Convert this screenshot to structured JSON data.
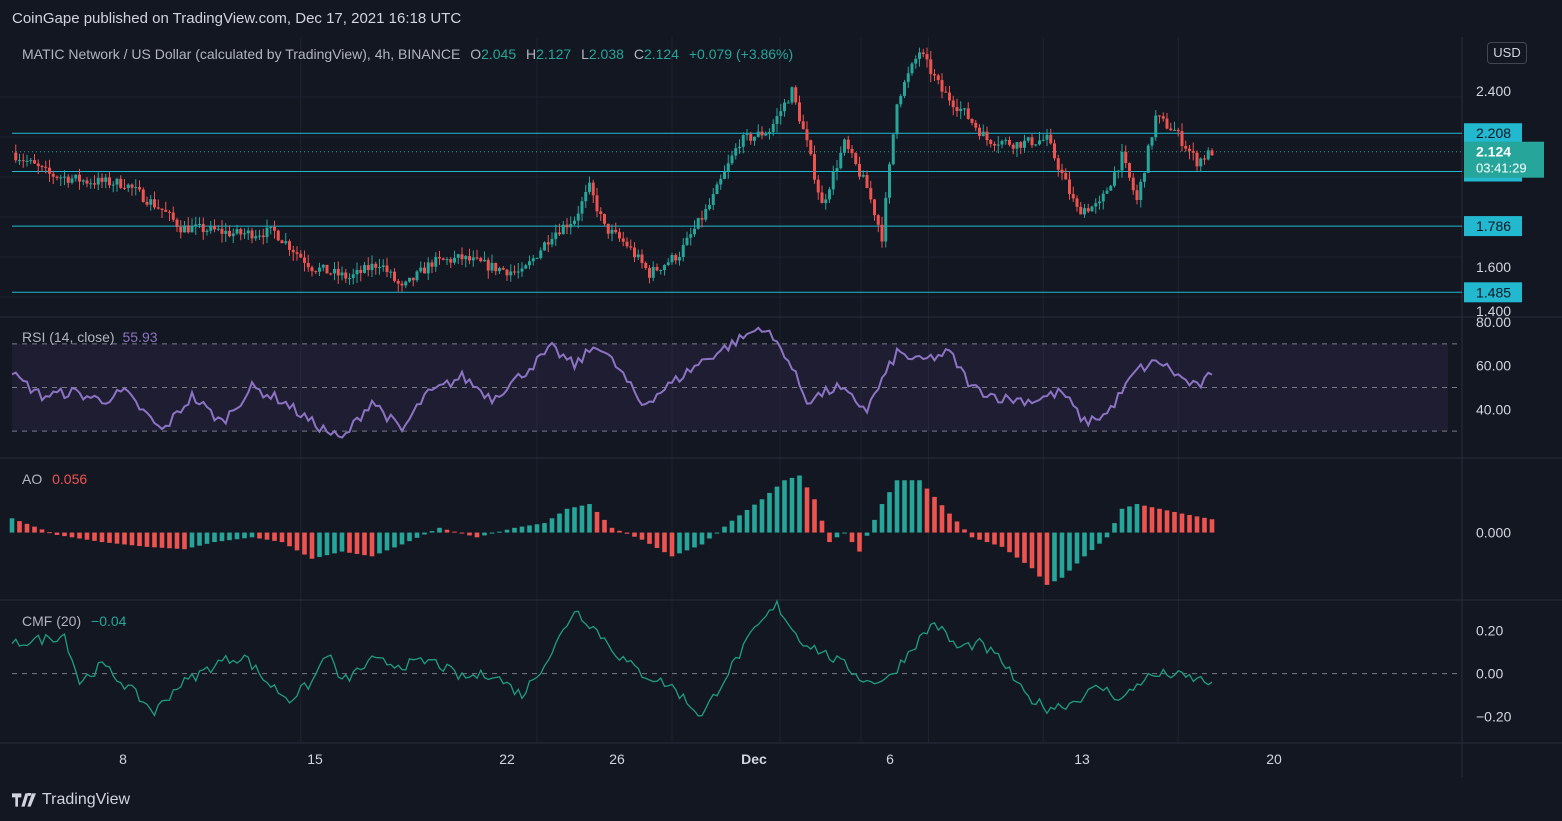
{
  "header": {
    "published": "CoinGape published on TradingView.com, Dec 17, 2021 16:18 UTC"
  },
  "main_legend": {
    "symbol": "MATIC Network / US Dollar (calculated by TradingView), 4h, BINANCE",
    "o_label": "O",
    "o_value": "2.045",
    "h_label": "H",
    "h_value": "2.127",
    "l_label": "L",
    "l_value": "2.038",
    "c_label": "C",
    "c_value": "2.124",
    "change": "+0.079 (+3.86%)"
  },
  "currency_button": "USD",
  "rsi_legend": {
    "label": "RSI (14, close)",
    "value": "55.93"
  },
  "ao_legend": {
    "label": "AO",
    "value": "0.056"
  },
  "cmf_legend": {
    "label": "CMF (20)",
    "value": "−0.04"
  },
  "footer": {
    "brand": "TradingView"
  },
  "colors": {
    "background": "#131722",
    "up": "#26a69a",
    "down": "#ef5350",
    "level": "#22b8cf",
    "rsi": "#8c73c4",
    "cmf": "#1e9e80",
    "grid": "#1e222d",
    "text": "#d1d4dc"
  },
  "chart_data": [
    {
      "type": "candlestick",
      "name": "price",
      "timeframe": "4h",
      "xaxis_ticks": [
        "8",
        "15",
        "22",
        "26",
        "Dec",
        "6",
        "13",
        "20"
      ],
      "yaxis_ticks": [
        "2.400",
        "1.600",
        "1.400"
      ],
      "ylim": [
        1.4,
        2.6
      ],
      "levels": [
        {
          "value": 2.208,
          "label": "2.208"
        },
        {
          "value": 2.034,
          "label": "2.034"
        },
        {
          "value": 1.786,
          "label": "1.786"
        },
        {
          "value": 1.485,
          "label": "1.485"
        }
      ],
      "last_price": {
        "value": 2.124,
        "label": "2.124",
        "countdown": "03:41:29"
      },
      "close_trend": [
        [
          0,
          2.12
        ],
        [
          10,
          2.02
        ],
        [
          20,
          1.99
        ],
        [
          30,
          1.98
        ],
        [
          40,
          1.86
        ],
        [
          45,
          1.78
        ],
        [
          52,
          1.77
        ],
        [
          60,
          1.75
        ],
        [
          70,
          1.76
        ],
        [
          80,
          1.6
        ],
        [
          90,
          1.55
        ],
        [
          98,
          1.62
        ],
        [
          104,
          1.5
        ],
        [
          112,
          1.62
        ],
        [
          120,
          1.64
        ],
        [
          128,
          1.6
        ],
        [
          136,
          1.57
        ],
        [
          144,
          1.75
        ],
        [
          150,
          1.82
        ],
        [
          154,
          1.96
        ],
        [
          158,
          1.78
        ],
        [
          164,
          1.7
        ],
        [
          170,
          1.57
        ],
        [
          178,
          1.66
        ],
        [
          186,
          1.88
        ],
        [
          194,
          2.17
        ],
        [
          202,
          2.22
        ],
        [
          208,
          2.4
        ],
        [
          212,
          2.16
        ],
        [
          216,
          1.88
        ],
        [
          222,
          2.16
        ],
        [
          228,
          1.96
        ],
        [
          232,
          1.74
        ],
        [
          236,
          2.36
        ],
        [
          242,
          2.58
        ],
        [
          248,
          2.4
        ],
        [
          254,
          2.3
        ],
        [
          260,
          2.18
        ],
        [
          268,
          2.16
        ],
        [
          276,
          2.18
        ],
        [
          284,
          1.86
        ],
        [
          290,
          1.88
        ],
        [
          296,
          2.1
        ],
        [
          300,
          1.9
        ],
        [
          305,
          2.28
        ],
        [
          310,
          2.22
        ],
        [
          316,
          2.08
        ],
        [
          320,
          2.124
        ]
      ]
    },
    {
      "type": "line",
      "name": "RSI",
      "yaxis_ticks": [
        "80.00",
        "60.00",
        "40.00"
      ],
      "ylim": [
        20,
        80
      ],
      "bands": [
        30,
        50,
        70
      ],
      "values": [
        [
          0,
          56
        ],
        [
          8,
          46
        ],
        [
          16,
          48
        ],
        [
          24,
          44
        ],
        [
          30,
          48
        ],
        [
          40,
          30
        ],
        [
          48,
          46
        ],
        [
          56,
          34
        ],
        [
          64,
          50
        ],
        [
          72,
          44
        ],
        [
          80,
          34
        ],
        [
          88,
          26
        ],
        [
          96,
          44
        ],
        [
          104,
          30
        ],
        [
          110,
          46
        ],
        [
          120,
          55
        ],
        [
          128,
          45
        ],
        [
          136,
          56
        ],
        [
          144,
          68
        ],
        [
          150,
          60
        ],
        [
          156,
          70
        ],
        [
          162,
          58
        ],
        [
          168,
          42
        ],
        [
          176,
          52
        ],
        [
          184,
          62
        ],
        [
          192,
          70
        ],
        [
          200,
          78
        ],
        [
          206,
          66
        ],
        [
          212,
          44
        ],
        [
          220,
          50
        ],
        [
          228,
          40
        ],
        [
          236,
          66
        ],
        [
          242,
          62
        ],
        [
          250,
          66
        ],
        [
          256,
          50
        ],
        [
          264,
          45
        ],
        [
          272,
          44
        ],
        [
          280,
          48
        ],
        [
          286,
          34
        ],
        [
          292,
          38
        ],
        [
          300,
          58
        ],
        [
          306,
          62
        ],
        [
          312,
          54
        ],
        [
          316,
          50
        ],
        [
          320,
          55.93
        ]
      ]
    },
    {
      "type": "bar",
      "name": "AO",
      "yaxis_ticks": [
        "0.000"
      ],
      "ylim": [
        -0.25,
        0.28
      ],
      "values": [
        [
          0,
          0.06
        ],
        [
          12,
          -0.01
        ],
        [
          24,
          -0.04
        ],
        [
          36,
          -0.06
        ],
        [
          46,
          -0.07
        ],
        [
          54,
          -0.04
        ],
        [
          64,
          -0.02
        ],
        [
          72,
          -0.04
        ],
        [
          80,
          -0.11
        ],
        [
          88,
          -0.08
        ],
        [
          96,
          -0.1
        ],
        [
          104,
          -0.05
        ],
        [
          114,
          0.02
        ],
        [
          124,
          -0.02
        ],
        [
          134,
          0.02
        ],
        [
          142,
          0.04
        ],
        [
          148,
          0.1
        ],
        [
          154,
          0.12
        ],
        [
          160,
          0.02
        ],
        [
          168,
          -0.03
        ],
        [
          176,
          -0.1
        ],
        [
          184,
          -0.05
        ],
        [
          192,
          0.05
        ],
        [
          200,
          0.14
        ],
        [
          206,
          0.22
        ],
        [
          210,
          0.24
        ],
        [
          214,
          0.14
        ],
        [
          218,
          -0.04
        ],
        [
          222,
          0.0
        ],
        [
          226,
          -0.08
        ],
        [
          232,
          0.12
        ],
        [
          236,
          0.22
        ],
        [
          242,
          0.22
        ],
        [
          250,
          0.08
        ],
        [
          256,
          -0.02
        ],
        [
          264,
          -0.06
        ],
        [
          272,
          -0.15
        ],
        [
          276,
          -0.22
        ],
        [
          280,
          -0.19
        ],
        [
          286,
          -0.1
        ],
        [
          292,
          -0.02
        ],
        [
          296,
          0.1
        ],
        [
          300,
          0.12
        ],
        [
          306,
          0.1
        ],
        [
          312,
          0.08
        ],
        [
          320,
          0.056
        ]
      ]
    },
    {
      "type": "line",
      "name": "CMF",
      "yaxis_ticks": [
        "0.20",
        "0.00",
        "−0.20"
      ],
      "ylim": [
        -0.3,
        0.32
      ],
      "zero_line": 0,
      "values": [
        [
          0,
          0.14
        ],
        [
          8,
          0.16
        ],
        [
          14,
          0.18
        ],
        [
          18,
          -0.04
        ],
        [
          24,
          0.04
        ],
        [
          32,
          -0.08
        ],
        [
          38,
          -0.18
        ],
        [
          44,
          -0.06
        ],
        [
          50,
          0.0
        ],
        [
          56,
          0.06
        ],
        [
          62,
          0.08
        ],
        [
          68,
          -0.04
        ],
        [
          74,
          -0.12
        ],
        [
          80,
          -0.04
        ],
        [
          84,
          0.1
        ],
        [
          88,
          -0.04
        ],
        [
          96,
          0.06
        ],
        [
          104,
          0.04
        ],
        [
          112,
          0.06
        ],
        [
          120,
          -0.02
        ],
        [
          128,
          0.0
        ],
        [
          136,
          -0.1
        ],
        [
          144,
          0.1
        ],
        [
          150,
          0.3
        ],
        [
          156,
          0.2
        ],
        [
          162,
          0.08
        ],
        [
          168,
          0.0
        ],
        [
          176,
          -0.06
        ],
        [
          184,
          -0.2
        ],
        [
          190,
          -0.02
        ],
        [
          198,
          0.2
        ],
        [
          204,
          0.32
        ],
        [
          210,
          0.16
        ],
        [
          216,
          0.1
        ],
        [
          222,
          0.04
        ],
        [
          228,
          -0.04
        ],
        [
          234,
          -0.02
        ],
        [
          240,
          0.12
        ],
        [
          246,
          0.24
        ],
        [
          252,
          0.12
        ],
        [
          258,
          0.14
        ],
        [
          264,
          0.06
        ],
        [
          270,
          -0.1
        ],
        [
          276,
          -0.16
        ],
        [
          282,
          -0.14
        ],
        [
          290,
          -0.06
        ],
        [
          296,
          -0.12
        ],
        [
          302,
          -0.02
        ],
        [
          308,
          0.0
        ],
        [
          314,
          -0.02
        ],
        [
          320,
          -0.04
        ]
      ]
    }
  ]
}
